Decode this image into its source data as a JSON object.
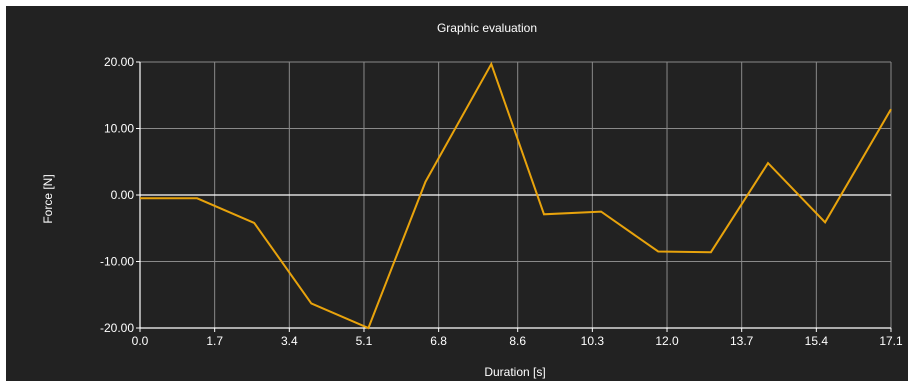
{
  "colors": {
    "background": "#222222",
    "grid": "#8a8a8a",
    "axis": "#ffffff",
    "zero_line": "#ffffff",
    "series": "#e8a30c"
  },
  "chart_data": {
    "type": "line",
    "title": "Graphic evaluation",
    "xlabel": "Duration [s]",
    "ylabel": "Force [N]",
    "xlim": [
      0.0,
      17.1
    ],
    "ylim": [
      -20.0,
      20.0
    ],
    "x_ticks": [
      "0.0",
      "1.7",
      "3.4",
      "5.1",
      "6.8",
      "8.6",
      "10.3",
      "12.0",
      "13.7",
      "15.4",
      "17.1"
    ],
    "y_ticks": [
      "20.00",
      "10.00",
      "0.00",
      "-10.00",
      "-20.00"
    ],
    "grid": true,
    "legend": "none",
    "series": [
      {
        "x": [
          0.0,
          1.3,
          2.6,
          3.9,
          5.2,
          6.5,
          8.0,
          9.2,
          10.5,
          11.8,
          13.0,
          14.3,
          15.6,
          17.1
        ],
        "y": [
          -0.5,
          -0.5,
          -4.2,
          -16.3,
          -20.0,
          2.0,
          19.7,
          -2.9,
          -2.5,
          -8.5,
          -8.6,
          4.8,
          -4.1,
          12.9
        ]
      }
    ]
  }
}
